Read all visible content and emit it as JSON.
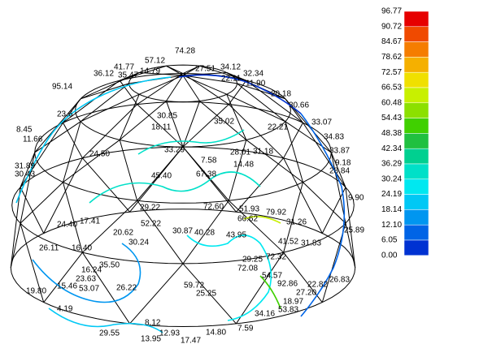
{
  "legend": {
    "labels": [
      "96.77",
      "90.72",
      "84.67",
      "78.62",
      "72.57",
      "66.53",
      "60.48",
      "54.43",
      "48.38",
      "42.34",
      "36.29",
      "30.24",
      "24.19",
      "18.14",
      "12.10",
      "6.05",
      "0.00"
    ],
    "colors": [
      "#e60000",
      "#f04a00",
      "#f57d00",
      "#f5b000",
      "#f0e000",
      "#c8f000",
      "#8ce000",
      "#40d000",
      "#20c040",
      "#00d090",
      "#00e0c8",
      "#00e8f0",
      "#00c8f5",
      "#0096f0",
      "#0064e6",
      "#0032d2"
    ]
  },
  "labels": [
    "74.28",
    "57.12",
    "41.77",
    "36.12",
    "35.47",
    "14.79",
    "27.51",
    "34.12",
    "32.34",
    "22.11",
    "11.90",
    "20.18",
    "95.14",
    "30.66",
    "33.07",
    "34.83",
    "33.87",
    "9.18",
    "28.84",
    "9.90",
    "23.6",
    "18.11",
    "30.85",
    "35.02",
    "28.01",
    "31.18",
    "22.21",
    "8.45",
    "11.66",
    "31.89",
    "30.43",
    "24.50",
    "33.29",
    "7.58",
    "67.38",
    "45.40",
    "14.48",
    "29.22",
    "72.60",
    "51.93",
    "66.62",
    "79.92",
    "31.26",
    "24.40",
    "17.41",
    "20.62",
    "30.24",
    "52.22",
    "30.87",
    "40.28",
    "43.95",
    "41.52",
    "31.83",
    "25.89",
    "26.11",
    "16.40",
    "16.24",
    "35.50",
    "29.25",
    "72.08",
    "72.32",
    "54.57",
    "92.86",
    "26.83",
    "23.63",
    "15.46",
    "53.07",
    "26.22",
    "59.72",
    "25.25",
    "22.82",
    "19.80",
    "4.19",
    "29.55",
    "8.12",
    "13.95",
    "17.47",
    "14.80",
    "7.59",
    "53.83",
    "27.20",
    "18.97",
    "12.93",
    "34.16"
  ]
}
